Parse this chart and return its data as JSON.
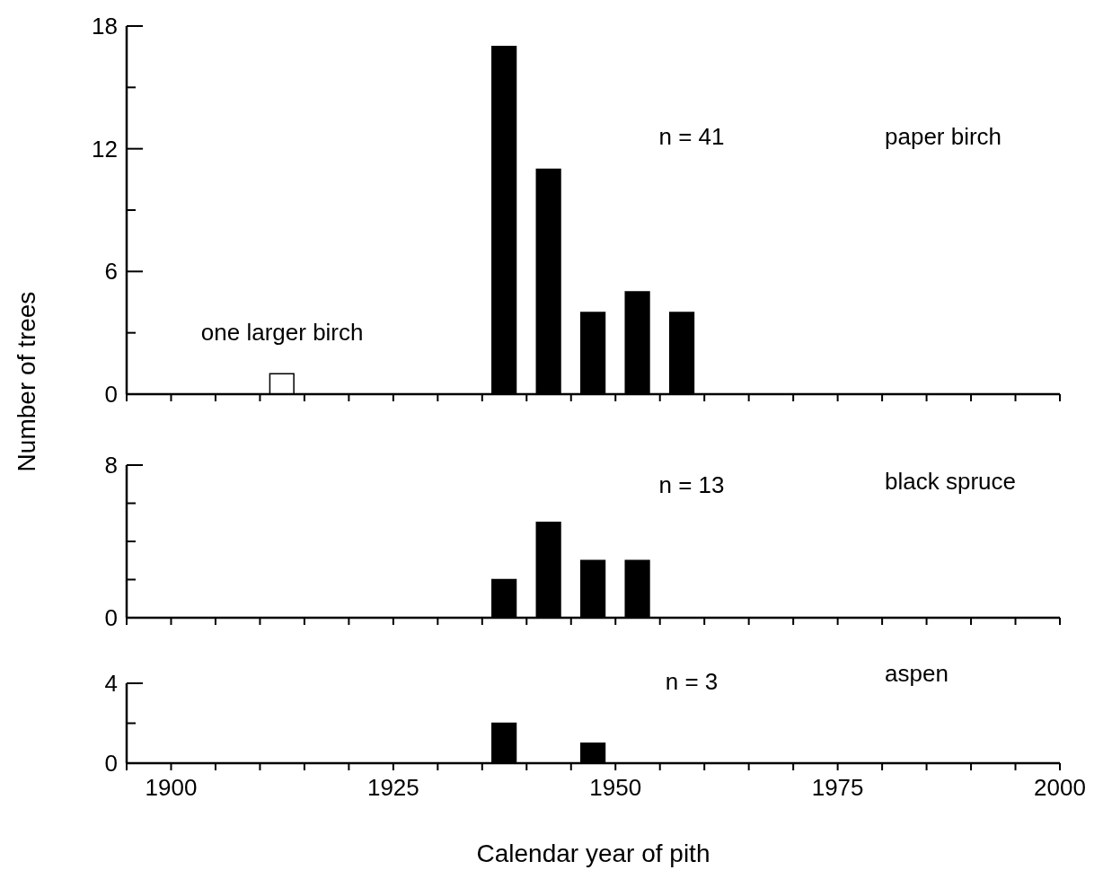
{
  "chart_data": [
    {
      "type": "bar",
      "xlim": [
        1895,
        2000
      ],
      "xticks": [
        {
          "value": 1895,
          "label": null
        },
        {
          "value": 1900,
          "label": null
        },
        {
          "value": 1905,
          "label": null
        },
        {
          "value": 1910,
          "label": null
        },
        {
          "value": 1915,
          "label": null
        },
        {
          "value": 1920,
          "label": null
        },
        {
          "value": 1925,
          "label": null
        },
        {
          "value": 1930,
          "label": null
        },
        {
          "value": 1935,
          "label": null
        },
        {
          "value": 1940,
          "label": null
        },
        {
          "value": 1945,
          "label": null
        },
        {
          "value": 1950,
          "label": null
        },
        {
          "value": 1955,
          "label": null
        },
        {
          "value": 1960,
          "label": null
        },
        {
          "value": 1965,
          "label": null
        },
        {
          "value": 1970,
          "label": null
        },
        {
          "value": 1975,
          "label": null
        },
        {
          "value": 1980,
          "label": null
        },
        {
          "value": 1985,
          "label": null
        },
        {
          "value": 1990,
          "label": null
        },
        {
          "value": 1995,
          "label": null
        },
        {
          "value": 2000,
          "label": null
        }
      ],
      "tick_labels": "y",
      "ylim": [
        0,
        18
      ],
      "yticks": [
        0,
        {
          "value": 3,
          "label": null
        },
        6,
        {
          "value": 9,
          "label": null
        },
        12,
        {
          "value": 15,
          "label": null
        },
        18
      ],
      "series": [
        {
          "color": "#ffffff",
          "x": [
            1912.5
          ],
          "values": [
            1
          ]
        },
        {
          "color": "#000000",
          "x": [
            1937.5,
            1942.5,
            1947.5,
            1952.5,
            1957.5
          ],
          "values": [
            17,
            11,
            4,
            5,
            4
          ]
        }
      ],
      "annotations": [
        {
          "text": "one larger birch",
          "x": 1912.5,
          "y": 1
        },
        "n = 41",
        "paper birch"
      ]
    },
    {
      "type": "bar",
      "ylabel": "Number of trees",
      "xlim": [
        1895,
        2000
      ],
      "xticks": [
        {
          "value": 1895,
          "label": null
        },
        {
          "value": 1900,
          "label": null
        },
        {
          "value": 1905,
          "label": null
        },
        {
          "value": 1910,
          "label": null
        },
        {
          "value": 1915,
          "label": null
        },
        {
          "value": 1920,
          "label": null
        },
        {
          "value": 1925,
          "label": null
        },
        {
          "value": 1930,
          "label": null
        },
        {
          "value": 1935,
          "label": null
        },
        {
          "value": 1940,
          "label": null
        },
        {
          "value": 1945,
          "label": null
        },
        {
          "value": 1950,
          "label": null
        },
        {
          "value": 1955,
          "label": null
        },
        {
          "value": 1960,
          "label": null
        },
        {
          "value": 1965,
          "label": null
        },
        {
          "value": 1970,
          "label": null
        },
        {
          "value": 1975,
          "label": null
        },
        {
          "value": 1980,
          "label": null
        },
        {
          "value": 1985,
          "label": null
        },
        {
          "value": 1990,
          "label": null
        },
        {
          "value": 1995,
          "label": null
        },
        {
          "value": 2000,
          "label": null
        }
      ],
      "tick_labels": "y",
      "ylim": [
        0,
        8
      ],
      "yticks": [
        0,
        {
          "value": 2,
          "label": null
        },
        {
          "value": 4,
          "label": null
        },
        {
          "value": 6,
          "label": null
        },
        8
      ],
      "series": [
        {
          "color": "#000000",
          "x": [
            1937.5,
            1942.5,
            1947.5,
            1952.5
          ],
          "values": [
            2,
            5,
            3,
            3
          ]
        }
      ],
      "annotations": [
        "n = 13",
        "black spruce"
      ]
    },
    {
      "type": "bar",
      "xlabel": "Calendar year of pith",
      "xlim": [
        1895,
        2000
      ],
      "xticks": [
        {
          "value": 1895,
          "label": null
        },
        {
          "value": 1900,
          "label": "1900"
        },
        {
          "value": 1905,
          "label": null
        },
        {
          "value": 1910,
          "label": null
        },
        {
          "value": 1915,
          "label": null
        },
        {
          "value": 1920,
          "label": null
        },
        {
          "value": 1925,
          "label": "1925"
        },
        {
          "value": 1930,
          "label": null
        },
        {
          "value": 1935,
          "label": null
        },
        {
          "value": 1940,
          "label": null
        },
        {
          "value": 1945,
          "label": null
        },
        {
          "value": 1950,
          "label": "1950"
        },
        {
          "value": 1955,
          "label": null
        },
        {
          "value": 1960,
          "label": null
        },
        {
          "value": 1965,
          "label": null
        },
        {
          "value": 1970,
          "label": null
        },
        {
          "value": 1975,
          "label": "1975"
        },
        {
          "value": 1980,
          "label": null
        },
        {
          "value": 1985,
          "label": null
        },
        {
          "value": 1990,
          "label": null
        },
        {
          "value": 1995,
          "label": null
        },
        {
          "value": 2000,
          "label": "2000"
        }
      ],
      "ylim": [
        0,
        4
      ],
      "yticks": [
        0,
        {
          "value": 2,
          "label": null
        },
        4
      ],
      "series": [
        {
          "color": "#000000",
          "x": [
            1937.5,
            1942.5,
            1947.5
          ],
          "values": [
            2,
            0,
            1
          ]
        }
      ],
      "annotations": [
        "n = 3",
        "aspen"
      ]
    }
  ]
}
